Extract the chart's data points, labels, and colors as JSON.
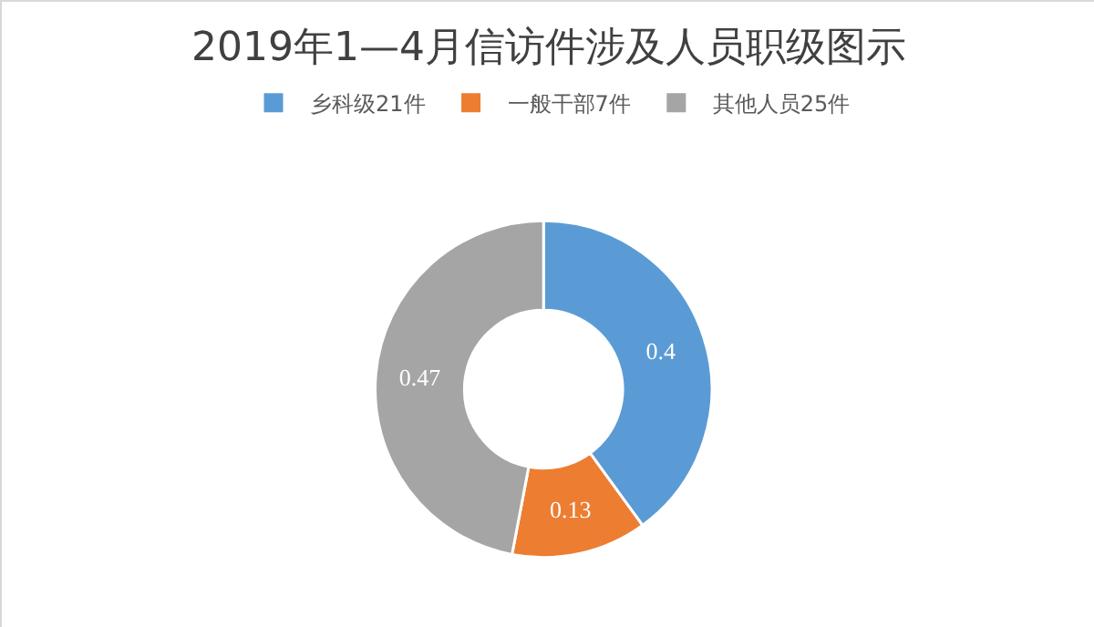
{
  "chart_data": {
    "type": "donut",
    "title": "2019年1—4月信访件涉及人员职级图示",
    "categories": [
      "乡科级21件",
      "一般干部7件",
      "其他人员25件"
    ],
    "values": [
      0.4,
      0.13,
      0.47
    ],
    "data_labels": true,
    "colors": [
      "#5b9bd5",
      "#ed7d31",
      "#a5a5a5"
    ],
    "legend": "top"
  }
}
